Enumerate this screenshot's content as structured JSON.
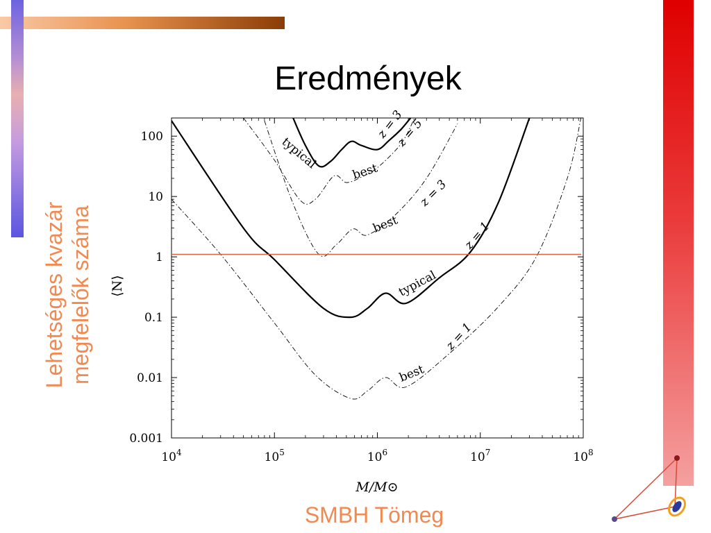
{
  "slide": {
    "title": "Eredmények",
    "ylabel_hu_line1": "Lehetséges kvazár",
    "ylabel_hu_line2": "megfelelők száma",
    "xlabel_hu": "SMBH Tömeg"
  },
  "colors": {
    "title": "#000000",
    "orange_text": "#f08a52",
    "threshold_line": "#e06040",
    "curve": "#000000"
  },
  "icons": [
    "triangle-orbit-icon"
  ],
  "chart_data": {
    "type": "line",
    "xlabel": "M/M⊙",
    "ylabel": "⟨N⟩",
    "xscale": "log",
    "yscale": "log",
    "xlim": [
      10000,
      100000000
    ],
    "ylim": [
      0.001,
      200
    ],
    "xticks": [
      10000,
      100000,
      1000000,
      10000000,
      100000000
    ],
    "xtick_labels": [
      {
        "base": "10",
        "exp": "4"
      },
      {
        "base": "10",
        "exp": "5"
      },
      {
        "base": "10",
        "exp": "6"
      },
      {
        "base": "10",
        "exp": "7"
      },
      {
        "base": "10",
        "exp": "8"
      }
    ],
    "yticks": [
      0.001,
      0.01,
      0.1,
      1,
      10,
      100
    ],
    "ytick_labels": [
      "0.001",
      "0.01",
      "0.1",
      "1",
      "10",
      "100"
    ],
    "threshold": {
      "y": 1.1
    },
    "series": [
      {
        "name": "typical z=3",
        "style": "solid",
        "label_parts": [
          "typical",
          "z = 3"
        ],
        "points": [
          [
            150000,
            210
          ],
          [
            200000,
            70
          ],
          [
            270000,
            32
          ],
          [
            350000,
            38
          ],
          [
            450000,
            60
          ],
          [
            560000,
            82
          ],
          [
            700000,
            70
          ],
          [
            1000000,
            60
          ],
          [
            1300000,
            85
          ],
          [
            1700000,
            130
          ],
          [
            2100000,
            200
          ]
        ]
      },
      {
        "name": "best z=5",
        "style": "dashdot",
        "label_parts": [
          "best",
          "z = 5"
        ],
        "points": [
          [
            50000,
            200
          ],
          [
            100000,
            40
          ],
          [
            180000,
            8.5
          ],
          [
            250000,
            9
          ],
          [
            380000,
            22
          ],
          [
            500000,
            17
          ],
          [
            700000,
            21
          ],
          [
            1000000,
            30
          ],
          [
            1700000,
            75
          ],
          [
            2300000,
            200
          ]
        ]
      },
      {
        "name": "best z=3",
        "style": "dashdot",
        "label_parts": [
          "best",
          "z = 3"
        ],
        "points": [
          [
            80000,
            180
          ],
          [
            150000,
            8
          ],
          [
            270000,
            1.1
          ],
          [
            400000,
            1.6
          ],
          [
            580000,
            2.9
          ],
          [
            800000,
            2.3
          ],
          [
            1500000,
            5
          ],
          [
            3000000,
            20
          ],
          [
            6000000,
            160
          ]
        ]
      },
      {
        "name": "typical z=1",
        "style": "solid",
        "label_parts": [
          "typical",
          "z = 1"
        ],
        "points": [
          [
            10000,
            180
          ],
          [
            50000,
            3
          ],
          [
            100000,
            0.9
          ],
          [
            300000,
            0.14
          ],
          [
            550000,
            0.1
          ],
          [
            800000,
            0.14
          ],
          [
            1200000,
            0.25
          ],
          [
            1900000,
            0.17
          ],
          [
            4000000,
            0.45
          ],
          [
            8000000,
            1.2
          ],
          [
            15000000,
            8
          ],
          [
            30000000,
            200
          ]
        ]
      },
      {
        "name": "best z=1",
        "style": "dashdot",
        "label_parts": [
          "best",
          "z = 1"
        ],
        "points": [
          [
            10000,
            9
          ],
          [
            30000,
            1.1
          ],
          [
            100000,
            0.08
          ],
          [
            250000,
            0.011
          ],
          [
            550000,
            0.0045
          ],
          [
            800000,
            0.006
          ],
          [
            1200000,
            0.01
          ],
          [
            1900000,
            0.007
          ],
          [
            5000000,
            0.025
          ],
          [
            15000000,
            0.15
          ],
          [
            35000000,
            1
          ],
          [
            70000000,
            20
          ],
          [
            95000000,
            200
          ]
        ]
      }
    ]
  }
}
